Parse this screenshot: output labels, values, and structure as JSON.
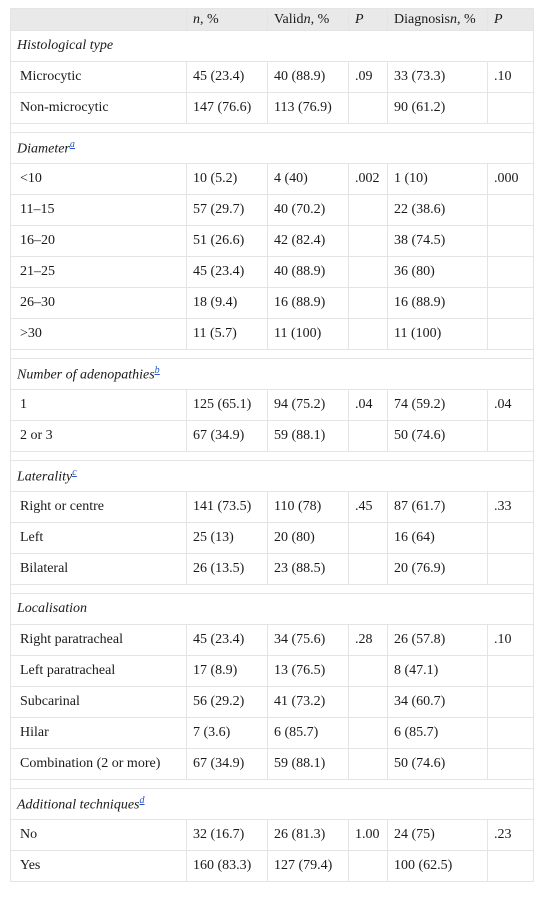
{
  "header": {
    "col1": "",
    "col2_italic": "n",
    "col2_rest": ", %",
    "col3_pre": "Valid",
    "col3_italic": "n",
    "col3_rest": ", %",
    "col4": "P",
    "col5_pre": "Diagnosis",
    "col5_italic": "n",
    "col5_rest": ", %",
    "col6": "P"
  },
  "sections": [
    {
      "title": "Histological type",
      "footnote": "",
      "rows": [
        {
          "label": "Microcytic",
          "n": "45 (23.4)",
          "valid": "40 (88.9)",
          "p1": ".09",
          "diagnosis": "33 (73.3)",
          "p2": ".10"
        },
        {
          "label": "Non-microcytic",
          "n": "147 (76.6)",
          "valid": "113 (76.9)",
          "p1": "",
          "diagnosis": "90 (61.2)",
          "p2": ""
        }
      ]
    },
    {
      "title": "Diameter",
      "footnote": "a",
      "rows": [
        {
          "label": "<10",
          "n": "10 (5.2)",
          "valid": "4 (40)",
          "p1": ".002",
          "diagnosis": "1 (10)",
          "p2": ".000"
        },
        {
          "label": "11–15",
          "n": "57 (29.7)",
          "valid": "40 (70.2)",
          "p1": "",
          "diagnosis": "22 (38.6)",
          "p2": ""
        },
        {
          "label": "16–20",
          "n": "51 (26.6)",
          "valid": "42 (82.4)",
          "p1": "",
          "diagnosis": "38 (74.5)",
          "p2": ""
        },
        {
          "label": "21–25",
          "n": "45 (23.4)",
          "valid": "40 (88.9)",
          "p1": "",
          "diagnosis": "36 (80)",
          "p2": ""
        },
        {
          "label": "26–30",
          "n": "18 (9.4)",
          "valid": "16 (88.9)",
          "p1": "",
          "diagnosis": "16 (88.9)",
          "p2": ""
        },
        {
          "label": ">30",
          "n": "11 (5.7)",
          "valid": "11 (100)",
          "p1": "",
          "diagnosis": "11 (100)",
          "p2": ""
        }
      ]
    },
    {
      "title": "Number of adenopathies",
      "footnote": "b",
      "rows": [
        {
          "label": "1",
          "n": "125 (65.1)",
          "valid": "94 (75.2)",
          "p1": ".04",
          "diagnosis": "74 (59.2)",
          "p2": ".04"
        },
        {
          "label": "2 or 3",
          "n": "67 (34.9)",
          "valid": "59 (88.1)",
          "p1": "",
          "diagnosis": "50 (74.6)",
          "p2": ""
        }
      ]
    },
    {
      "title": "Laterality",
      "footnote": "c",
      "rows": [
        {
          "label": "Right or centre",
          "n": "141 (73.5)",
          "valid": "110 (78)",
          "p1": ".45",
          "diagnosis": "87 (61.7)",
          "p2": ".33"
        },
        {
          "label": "Left",
          "n": "25 (13)",
          "valid": "20 (80)",
          "p1": "",
          "diagnosis": "16 (64)",
          "p2": ""
        },
        {
          "label": "Bilateral",
          "n": "26 (13.5)",
          "valid": "23 (88.5)",
          "p1": "",
          "diagnosis": "20 (76.9)",
          "p2": ""
        }
      ]
    },
    {
      "title": "Localisation",
      "footnote": "",
      "rows": [
        {
          "label": "Right paratracheal",
          "n": "45 (23.4)",
          "valid": "34 (75.6)",
          "p1": ".28",
          "diagnosis": "26 (57.8)",
          "p2": ".10"
        },
        {
          "label": "Left paratracheal",
          "n": "17 (8.9)",
          "valid": "13 (76.5)",
          "p1": "",
          "diagnosis": "8 (47.1)",
          "p2": ""
        },
        {
          "label": "Subcarinal",
          "n": "56 (29.2)",
          "valid": "41 (73.2)",
          "p1": "",
          "diagnosis": "34 (60.7)",
          "p2": ""
        },
        {
          "label": "Hilar",
          "n": "7 (3.6)",
          "valid": "6 (85.7)",
          "p1": "",
          "diagnosis": "6 (85.7)",
          "p2": ""
        },
        {
          "label": "Combination (2 or more)",
          "n": "67 (34.9)",
          "valid": "59 (88.1)",
          "p1": "",
          "diagnosis": "50 (74.6)",
          "p2": ""
        }
      ]
    },
    {
      "title": "Additional techniques",
      "footnote": "d",
      "rows": [
        {
          "label": "No",
          "n": "32 (16.7)",
          "valid": "26 (81.3)",
          "p1": "1.00",
          "diagnosis": "24 (75)",
          "p2": ".23"
        },
        {
          "label": "Yes",
          "n": "160 (83.3)",
          "valid": "127 (79.4)",
          "p1": "",
          "diagnosis": "100 (62.5)",
          "p2": ""
        }
      ]
    }
  ]
}
